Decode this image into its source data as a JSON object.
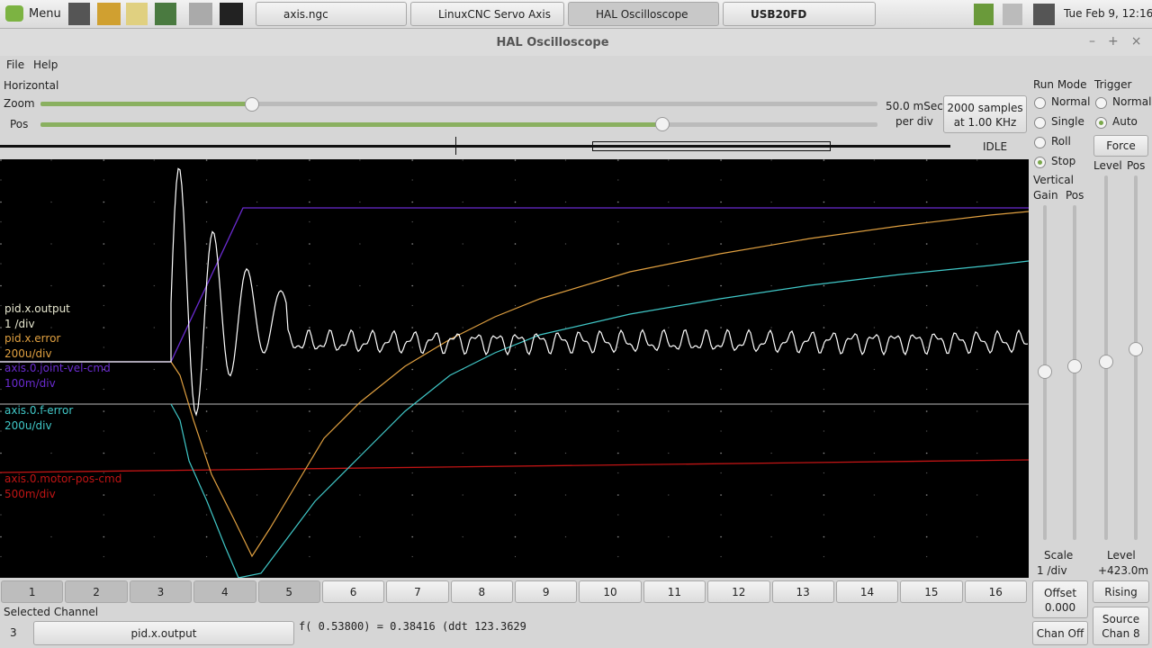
{
  "taskbar": {
    "menu": "Menu",
    "tasks": [
      "axis.ngc",
      "LinuxCNC Servo Axis ...",
      "HAL Oscilloscope",
      "USB20FD"
    ],
    "clock": "Tue Feb  9, 12:16"
  },
  "window": {
    "title": "HAL Oscilloscope"
  },
  "menubar": [
    "File",
    "Help"
  ],
  "horizontal": {
    "label": "Horizontal",
    "zoom": "Zoom",
    "pos": "Pos",
    "rate": "50.0 mSec",
    "per_div": "per div",
    "samples": "2000 samples",
    "at": "at 1.00 KHz",
    "status": "IDLE"
  },
  "run_mode": {
    "label": "Run Mode",
    "options": [
      "Normal",
      "Single",
      "Roll",
      "Stop"
    ]
  },
  "trigger": {
    "label": "Trigger",
    "options": [
      "Normal",
      "Auto"
    ],
    "force": "Force",
    "level": "Level",
    "pos": "Pos"
  },
  "vertical": {
    "label": "Vertical",
    "gain": "Gain",
    "pos": "Pos",
    "scale": "Scale",
    "scale_value": "1 /div",
    "offset": "Offset",
    "offset_value": "0.000",
    "chan_off": "Chan Off"
  },
  "trigger_bottom": {
    "level": "Level",
    "level_value": "+423.0m",
    "edge": "Rising",
    "source": "Source",
    "source_value": "Chan 8"
  },
  "channels": [
    {
      "name": "pid.x.output",
      "scale": "1 /div",
      "color": "#e8e8d0"
    },
    {
      "name": "pid.x.error",
      "scale": "200u/div",
      "color": "#e0a040"
    },
    {
      "name": "axis.0.joint-vel-cmd",
      "scale": "100m/div",
      "color": "#6a2bd0"
    },
    {
      "name": "axis.0.f-error",
      "scale": "200u/div",
      "color": "#40c8c8"
    },
    {
      "name": "axis.0.motor-pos-cmd",
      "scale": "500m/div",
      "color": "#c01414"
    }
  ],
  "channel_buttons": [
    "1",
    "2",
    "3",
    "4",
    "5",
    "6",
    "7",
    "8",
    "9",
    "10",
    "11",
    "12",
    "13",
    "14",
    "15",
    "16"
  ],
  "selected": {
    "label": "Selected Channel",
    "number": "3",
    "name": "pid.x.output",
    "readout": "f( 0.53800) =  0.38416 (ddt  123.3629"
  }
}
